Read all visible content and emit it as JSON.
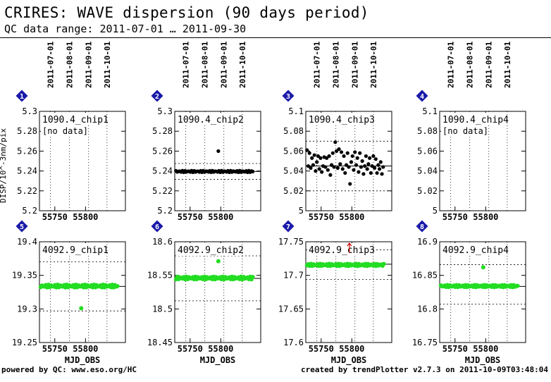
{
  "page": {
    "title": "CRIRES: WAVE dispersion (90 days period)",
    "subtitle": "QC data range: 2011-07-01 … 2011-09-30",
    "footer_left": "powered by QC: www.eso.org/HC",
    "footer_right": "created by trendPlotter v2.7.3 on 2011-10-09T03:48:04",
    "ylabel_row1": "DISP/10^-3nm/pix",
    "colors": {
      "row1_points": "#000000",
      "row2_points": "#22dd22",
      "badge": "#1a1aa8",
      "outlier": "#cc0000"
    }
  },
  "date_ticks": [
    {
      "label": "2011-07-01",
      "mjd": 55743
    },
    {
      "label": "2011-08-01",
      "mjd": 55774
    },
    {
      "label": "2011-09-01",
      "mjd": 55805
    },
    {
      "label": "2011-10-01",
      "mjd": 55835
    }
  ],
  "chart_data": [
    {
      "panel": "1",
      "type": "scatter",
      "label": "1090.4_chip1",
      "note": "[no data]",
      "xlabel": "",
      "xlim": [
        55725,
        55865
      ],
      "ylim": [
        5.2,
        5.3
      ],
      "yticks": [
        "5.3",
        "5.28",
        "5.26",
        "5.24",
        "5.22",
        "5.2"
      ],
      "xticks": [
        "55750",
        "55800"
      ],
      "mean": null,
      "dotted": [],
      "points": []
    },
    {
      "panel": "2",
      "type": "scatter",
      "label": "1090.4_chip2",
      "note": "",
      "xlabel": "",
      "xlim": [
        55725,
        55865
      ],
      "ylim": [
        5.2,
        5.3
      ],
      "yticks": [
        "5.3",
        "5.28",
        "5.26",
        "5.24",
        "5.22",
        "5.2"
      ],
      "xticks": [
        "55750",
        "55800"
      ],
      "mean": 5.2395,
      "dotted": [
        5.2315,
        5.2475
      ],
      "points": [
        [
          55796,
          5.26
        ]
      ],
      "band": {
        "from": 55727,
        "to": 55852,
        "y": 5.2395,
        "jitter": 0.0008,
        "count": 60
      }
    },
    {
      "panel": "3",
      "type": "scatter",
      "label": "1090.4_chip3",
      "note": "",
      "xlabel": "",
      "xlim": [
        55725,
        55865
      ],
      "ylim": [
        5.0,
        5.1
      ],
      "yticks": [
        "5.1",
        "5.08",
        "5.06",
        "5.04",
        "5.02",
        "5"
      ],
      "xticks": [
        "55750",
        "55800"
      ],
      "mean": 5.045,
      "dotted": [
        5.07,
        5.02
      ],
      "points": [
        [
          55727,
          5.061
        ],
        [
          55729,
          5.045
        ],
        [
          55731,
          5.058
        ],
        [
          55733,
          5.043
        ],
        [
          55735,
          5.053
        ],
        [
          55737,
          5.046
        ],
        [
          55739,
          5.056
        ],
        [
          55741,
          5.04
        ],
        [
          55743,
          5.049
        ],
        [
          55745,
          5.055
        ],
        [
          55747,
          5.042
        ],
        [
          55749,
          5.053
        ],
        [
          55751,
          5.039
        ],
        [
          55753,
          5.045
        ],
        [
          55755,
          5.054
        ],
        [
          55757,
          5.044
        ],
        [
          55759,
          5.053
        ],
        [
          55761,
          5.041
        ],
        [
          55763,
          5.055
        ],
        [
          55765,
          5.036
        ],
        [
          55767,
          5.046
        ],
        [
          55769,
          5.058
        ],
        [
          55771,
          5.044
        ],
        [
          55773,
          5.069
        ],
        [
          55775,
          5.06
        ],
        [
          55777,
          5.043
        ],
        [
          55779,
          5.062
        ],
        [
          55781,
          5.047
        ],
        [
          55783,
          5.059
        ],
        [
          55785,
          5.042
        ],
        [
          55787,
          5.055
        ],
        [
          55789,
          5.038
        ],
        [
          55791,
          5.046
        ],
        [
          55793,
          5.058
        ],
        [
          55795,
          5.044
        ],
        [
          55797,
          5.027
        ],
        [
          55799,
          5.049
        ],
        [
          55801,
          5.055
        ],
        [
          55803,
          5.041
        ],
        [
          55805,
          5.059
        ],
        [
          55807,
          5.046
        ],
        [
          55809,
          5.053
        ],
        [
          55811,
          5.039
        ],
        [
          55813,
          5.058
        ],
        [
          55815,
          5.044
        ],
        [
          55817,
          5.05
        ],
        [
          55819,
          5.037
        ],
        [
          55821,
          5.045
        ],
        [
          55823,
          5.055
        ],
        [
          55825,
          5.042
        ],
        [
          55827,
          5.047
        ],
        [
          55829,
          5.053
        ],
        [
          55831,
          5.038
        ],
        [
          55833,
          5.045
        ],
        [
          55835,
          5.055
        ],
        [
          55837,
          5.043
        ],
        [
          55839,
          5.052
        ],
        [
          55841,
          5.038
        ],
        [
          55843,
          5.046
        ],
        [
          55845,
          5.042
        ],
        [
          55847,
          5.049
        ],
        [
          55849,
          5.037
        ],
        [
          55851,
          5.044
        ]
      ]
    },
    {
      "panel": "4",
      "type": "scatter",
      "label": "1090.4_chip4",
      "note": "[no data]",
      "xlabel": "",
      "xlim": [
        55725,
        55865
      ],
      "ylim": [
        5.0,
        5.1
      ],
      "yticks": [
        "5.1",
        "5.08",
        "5.06",
        "5.04",
        "5.02",
        "5"
      ],
      "xticks": [
        "55750",
        "55800"
      ],
      "mean": null,
      "dotted": [],
      "points": []
    },
    {
      "panel": "5",
      "type": "scatter",
      "label": "4092.9_chip1",
      "note": "",
      "xlabel": "MJD_OBS",
      "xlim": [
        55725,
        55865
      ],
      "ylim": [
        19.25,
        19.4
      ],
      "yticks": [
        "19.4",
        "19.35",
        "19.3",
        "19.25"
      ],
      "xticks": [
        "55750",
        "55800"
      ],
      "mean": 19.3335,
      "dotted": [
        19.37,
        19.297
      ],
      "points": [
        [
          55793,
          19.301
        ]
      ],
      "band": {
        "from": 55727,
        "to": 55852,
        "y": 19.334,
        "jitter": 0.002,
        "count": 60
      }
    },
    {
      "panel": "6",
      "type": "scatter",
      "label": "4092.9_chip2",
      "note": "",
      "xlabel": "MJD_OBS",
      "xlim": [
        55725,
        55865
      ],
      "ylim": [
        18.45,
        18.6
      ],
      "yticks": [
        "18.6",
        "18.55",
        "18.5",
        "18.45"
      ],
      "xticks": [
        "55750",
        "55800"
      ],
      "mean": 18.5455,
      "dotted": [
        18.579,
        18.512
      ],
      "points": [
        [
          55796,
          18.571
        ]
      ],
      "band": {
        "from": 55727,
        "to": 55852,
        "y": 18.546,
        "jitter": 0.002,
        "count": 60
      }
    },
    {
      "panel": "7",
      "type": "scatter",
      "label": "4092.9_chip3",
      "note": "",
      "xlabel": "MJD_OBS",
      "xlim": [
        55725,
        55865
      ],
      "ylim": [
        17.6,
        17.75
      ],
      "yticks": [
        "17.75",
        "17.7",
        "17.65",
        "17.6"
      ],
      "xticks": [
        "55750",
        "55800"
      ],
      "mean": 17.7165,
      "dotted": [
        17.738,
        17.694
      ],
      "points": [],
      "band": {
        "from": 55727,
        "to": 55852,
        "y": 17.7155,
        "jitter": 0.0016,
        "count": 60
      },
      "outlier_x": 55796
    },
    {
      "panel": "8",
      "type": "scatter",
      "label": "4092.9_chip4",
      "note": "",
      "xlabel": "MJD_OBS",
      "xlim": [
        55725,
        55865
      ],
      "ylim": [
        16.75,
        16.9
      ],
      "yticks": [
        "16.9",
        "16.85",
        "16.8",
        "16.75"
      ],
      "xticks": [
        "55750",
        "55800"
      ],
      "mean": 16.8335,
      "dotted": [
        16.866,
        16.807
      ],
      "points": [
        [
          55796,
          16.862
        ]
      ],
      "band": {
        "from": 55727,
        "to": 55852,
        "y": 16.834,
        "jitter": 0.0015,
        "count": 60
      }
    }
  ]
}
